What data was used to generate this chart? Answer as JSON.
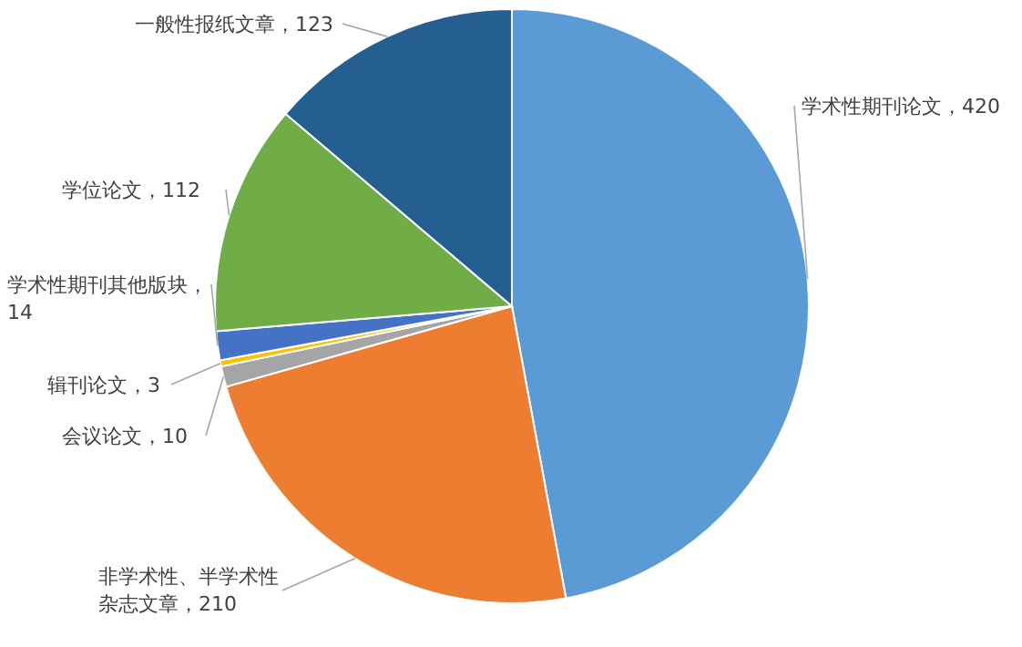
{
  "chart_data": {
    "type": "pie",
    "categories": [
      "学术性期刊论文",
      "非学术性、半学术性杂志文章",
      "会议论文",
      "辑刊论文",
      "学术性期刊其他版块",
      "学位论文",
      "一般性报纸文章"
    ],
    "values": [
      420,
      210,
      10,
      3,
      14,
      112,
      123
    ],
    "colors": [
      "#5b9bd5",
      "#ed7d31",
      "#a5a5a5",
      "#ffc000",
      "#4472c4",
      "#70ad47",
      "#255e91"
    ],
    "value_labels": [
      "，420",
      "，210",
      "，10",
      "，3",
      "，14",
      "，112",
      "，123"
    ]
  }
}
